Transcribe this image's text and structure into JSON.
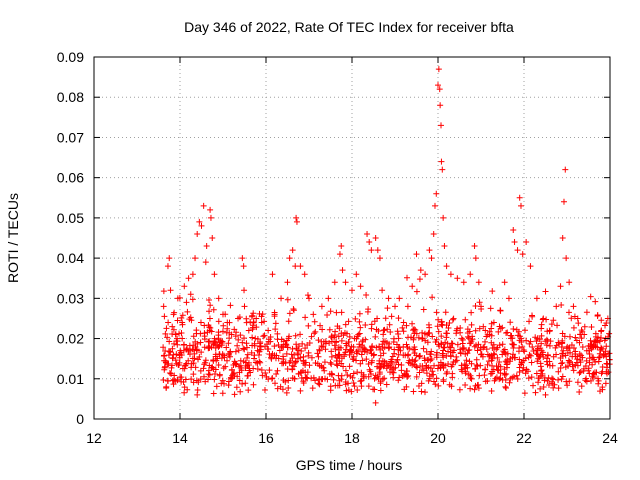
{
  "chart_data": {
    "type": "scatter",
    "title": "Day 346 of 2022, Rate Of TEC Index for receiver bfta",
    "xlabel": "GPS time / hours",
    "ylabel": "ROTI / TECUs",
    "xlim": [
      12,
      24
    ],
    "ylim": [
      0,
      0.09
    ],
    "xticks": [
      "12",
      "14",
      "16",
      "18",
      "20",
      "22",
      "24"
    ],
    "yticks": [
      "0",
      "0.01",
      "0.02",
      "0.03",
      "0.04",
      "0.05",
      "0.06",
      "0.07",
      "0.08",
      "0.09"
    ],
    "grid": true,
    "marker": "+",
    "color": "#ff0000",
    "series": [
      {
        "points": [
          [
            13.62,
            0.028
          ],
          [
            13.65,
            0.013
          ],
          [
            13.68,
            0.008
          ],
          [
            13.72,
            0.038
          ],
          [
            13.75,
            0.04
          ],
          [
            13.78,
            0.032
          ],
          [
            13.85,
            0.026
          ],
          [
            13.9,
            0.021
          ],
          [
            13.95,
            0.03
          ],
          [
            14.05,
            0.024
          ],
          [
            14.1,
            0.033
          ],
          [
            14.15,
            0.029
          ],
          [
            14.2,
            0.035
          ],
          [
            14.25,
            0.031
          ],
          [
            14.3,
            0.036
          ],
          [
            14.35,
            0.04
          ],
          [
            14.4,
            0.046
          ],
          [
            14.45,
            0.049
          ],
          [
            14.5,
            0.048
          ],
          [
            14.55,
            0.053
          ],
          [
            14.6,
            0.039
          ],
          [
            14.62,
            0.043
          ],
          [
            14.7,
            0.052
          ],
          [
            14.72,
            0.05
          ],
          [
            14.75,
            0.045
          ],
          [
            14.8,
            0.036
          ],
          [
            14.9,
            0.03
          ],
          [
            15.0,
            0.026
          ],
          [
            15.1,
            0.024
          ],
          [
            15.2,
            0.021
          ],
          [
            15.35,
            0.025
          ],
          [
            15.45,
            0.04
          ],
          [
            15.48,
            0.038
          ],
          [
            15.5,
            0.028
          ],
          [
            15.6,
            0.022
          ],
          [
            15.75,
            0.02
          ],
          [
            15.9,
            0.024
          ],
          [
            16.05,
            0.022
          ],
          [
            16.15,
            0.036
          ],
          [
            16.2,
            0.026
          ],
          [
            16.35,
            0.03
          ],
          [
            16.5,
            0.034
          ],
          [
            16.55,
            0.04
          ],
          [
            16.62,
            0.042
          ],
          [
            16.68,
            0.038
          ],
          [
            16.7,
            0.05
          ],
          [
            16.72,
            0.049
          ],
          [
            16.8,
            0.038
          ],
          [
            16.9,
            0.036
          ],
          [
            17.0,
            0.03
          ],
          [
            17.1,
            0.026
          ],
          [
            17.3,
            0.028
          ],
          [
            17.45,
            0.03
          ],
          [
            17.6,
            0.034
          ],
          [
            17.72,
            0.041
          ],
          [
            17.75,
            0.043
          ],
          [
            17.78,
            0.037
          ],
          [
            17.85,
            0.034
          ],
          [
            18.0,
            0.032
          ],
          [
            18.1,
            0.036
          ],
          [
            18.2,
            0.033
          ],
          [
            18.35,
            0.046
          ],
          [
            18.4,
            0.044
          ],
          [
            18.45,
            0.042
          ],
          [
            18.55,
            0.045
          ],
          [
            18.6,
            0.042
          ],
          [
            18.65,
            0.04
          ],
          [
            18.7,
            0.032
          ],
          [
            18.85,
            0.03
          ],
          [
            19.0,
            0.028
          ],
          [
            19.1,
            0.03
          ],
          [
            19.2,
            0.024
          ],
          [
            19.3,
            0.028
          ],
          [
            19.4,
            0.033
          ],
          [
            19.5,
            0.041
          ],
          [
            19.6,
            0.037
          ],
          [
            19.7,
            0.036
          ],
          [
            19.8,
            0.042
          ],
          [
            19.85,
            0.04
          ],
          [
            19.9,
            0.046
          ],
          [
            19.93,
            0.053
          ],
          [
            19.96,
            0.056
          ],
          [
            20.0,
            0.083
          ],
          [
            20.02,
            0.087
          ],
          [
            20.04,
            0.082
          ],
          [
            20.05,
            0.078
          ],
          [
            20.07,
            0.073
          ],
          [
            20.08,
            0.064
          ],
          [
            20.1,
            0.062
          ],
          [
            20.12,
            0.05
          ],
          [
            20.15,
            0.043
          ],
          [
            20.2,
            0.038
          ],
          [
            20.3,
            0.036
          ],
          [
            20.45,
            0.035
          ],
          [
            20.6,
            0.034
          ],
          [
            20.75,
            0.036
          ],
          [
            20.85,
            0.043
          ],
          [
            20.88,
            0.04
          ],
          [
            20.95,
            0.034
          ],
          [
            21.0,
            0.028
          ],
          [
            21.1,
            0.022
          ],
          [
            21.2,
            0.021
          ],
          [
            21.3,
            0.024
          ],
          [
            21.45,
            0.027
          ],
          [
            21.55,
            0.034
          ],
          [
            21.65,
            0.03
          ],
          [
            21.75,
            0.047
          ],
          [
            21.78,
            0.044
          ],
          [
            21.85,
            0.042
          ],
          [
            21.9,
            0.055
          ],
          [
            21.93,
            0.053
          ],
          [
            21.97,
            0.041
          ],
          [
            22.05,
            0.044
          ],
          [
            22.15,
            0.038
          ],
          [
            22.3,
            0.03
          ],
          [
            22.45,
            0.025
          ],
          [
            22.6,
            0.022
          ],
          [
            22.75,
            0.028
          ],
          [
            22.85,
            0.033
          ],
          [
            22.9,
            0.045
          ],
          [
            22.93,
            0.054
          ],
          [
            22.96,
            0.062
          ],
          [
            22.98,
            0.04
          ],
          [
            23.05,
            0.034
          ],
          [
            23.15,
            0.028
          ],
          [
            23.25,
            0.025
          ],
          [
            23.4,
            0.021
          ],
          [
            23.55,
            0.018
          ],
          [
            23.7,
            0.019
          ],
          [
            23.8,
            0.022
          ],
          [
            23.9,
            0.02
          ],
          [
            23.95,
            0.025
          ],
          [
            18.55,
            0.004
          ],
          [
            14.4,
            0.006
          ],
          [
            16.8,
            0.007
          ],
          [
            22.5,
            0.006
          ]
        ]
      }
    ]
  }
}
